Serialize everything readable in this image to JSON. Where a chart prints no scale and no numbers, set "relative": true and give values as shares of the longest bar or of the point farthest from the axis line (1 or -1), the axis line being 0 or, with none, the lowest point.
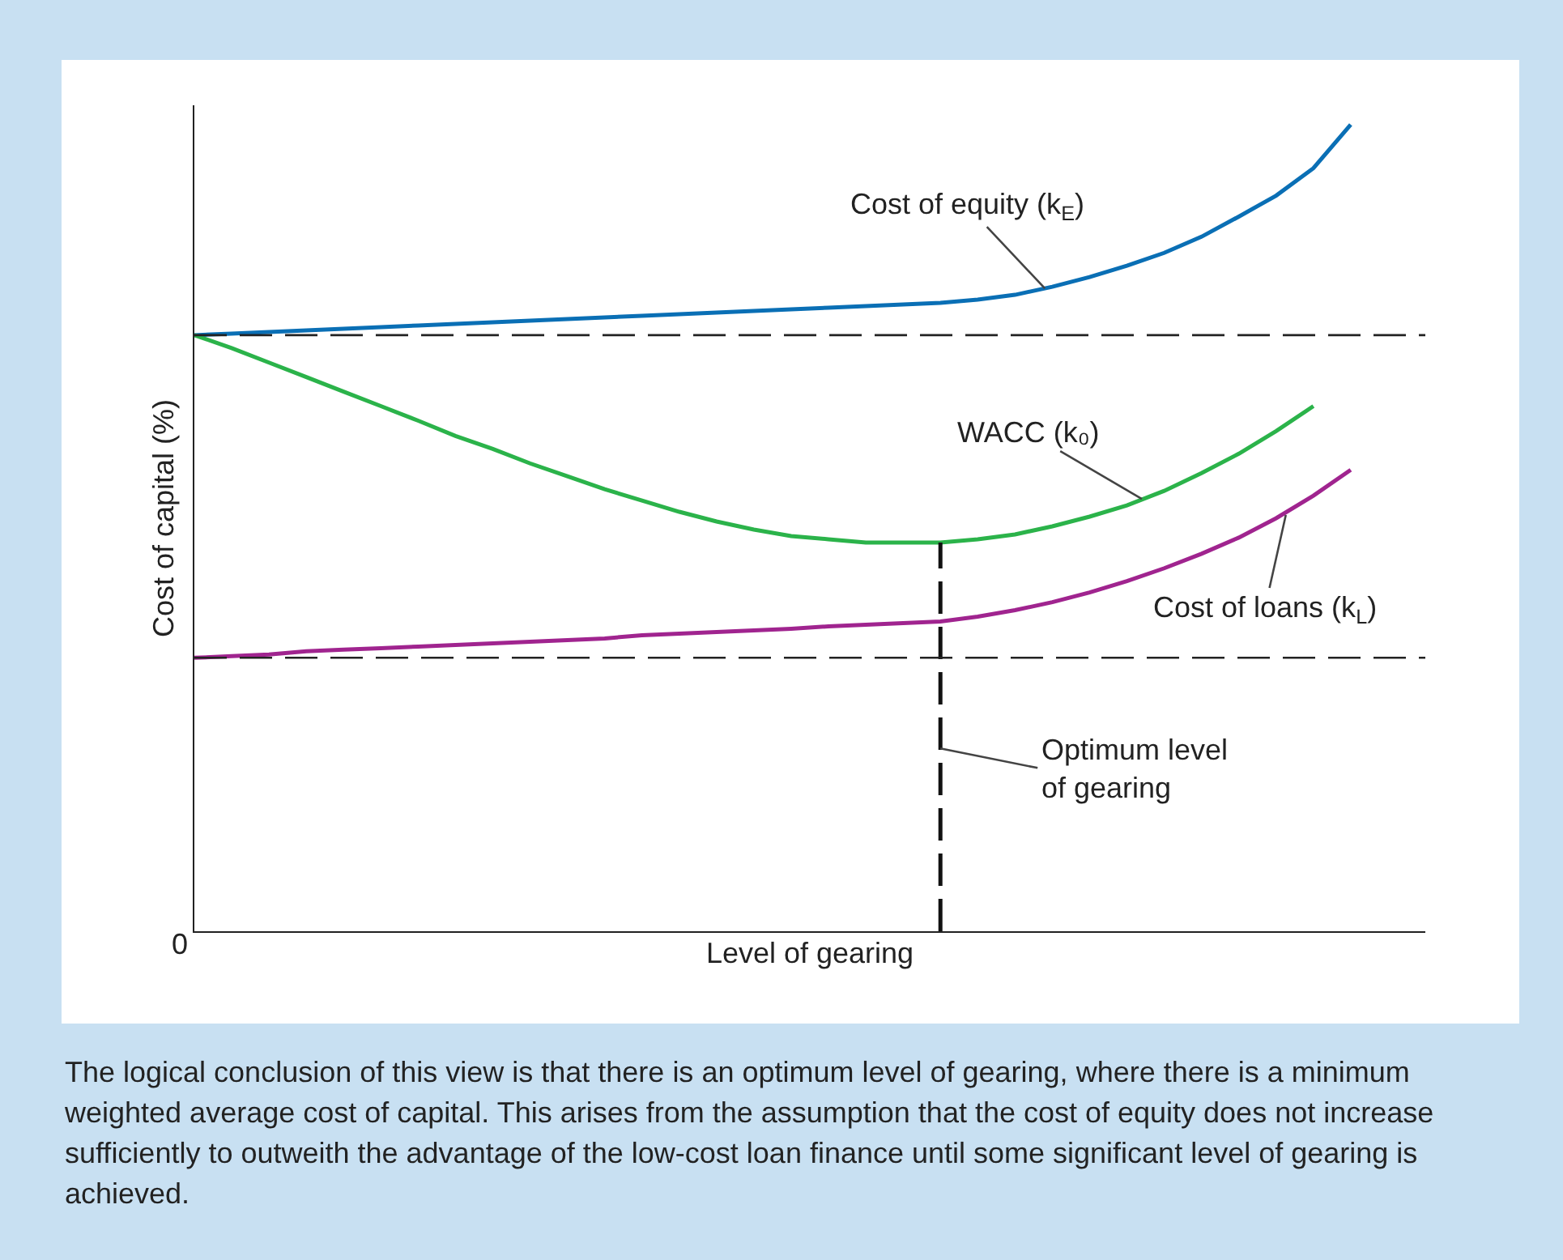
{
  "chart_data": {
    "type": "line",
    "relative": true,
    "marker": "none",
    "line_style": "solid",
    "xlabel": "Level of gearing",
    "ylabel": "Cost of capital (%)",
    "categories": [
      null,
      null,
      null,
      null,
      null,
      null,
      null,
      null,
      null,
      null,
      null,
      null,
      null,
      null,
      null,
      null,
      null,
      null,
      null,
      null,
      null,
      null,
      null,
      null,
      null,
      null,
      null,
      null,
      null,
      null,
      null,
      null
    ],
    "series": [
      {
        "color": "#0a6fb5",
        "values": [
          0.739,
          0.741,
          0.743,
          0.745,
          0.747,
          0.749,
          0.751,
          0.753,
          0.755,
          0.757,
          0.759,
          0.761,
          0.763,
          0.765,
          0.767,
          0.769,
          0.771,
          0.773,
          0.775,
          0.777,
          0.779,
          0.783,
          0.789,
          0.799,
          0.811,
          0.825,
          0.841,
          0.861,
          0.886,
          0.912,
          0.946,
          1.0
        ]
      },
      {
        "color": "#2bb34a",
        "values": [
          0.739,
          0.723,
          0.705,
          0.687,
          0.669,
          0.651,
          0.633,
          0.614,
          0.598,
          0.58,
          0.564,
          0.548,
          0.534,
          0.52,
          0.508,
          0.498,
          0.49,
          0.486,
          0.482,
          0.482,
          0.482,
          0.486,
          0.492,
          0.502,
          0.514,
          0.528,
          0.546,
          0.568,
          0.592,
          0.62,
          0.651,
          null
        ]
      },
      {
        "color": "#a0248f",
        "values": [
          0.339,
          0.341,
          0.343,
          0.347,
          0.349,
          0.351,
          0.353,
          0.355,
          0.357,
          0.359,
          0.361,
          0.363,
          0.367,
          0.369,
          0.371,
          0.373,
          0.375,
          0.378,
          0.38,
          0.382,
          0.384,
          0.39,
          0.398,
          0.408,
          0.42,
          0.434,
          0.45,
          0.468,
          0.488,
          0.512,
          0.54,
          0.572
        ]
      }
    ],
    "ref_lines": [
      {
        "axis": "y",
        "value": 0.739,
        "color": "#222222",
        "line_style": "dashed"
      },
      {
        "axis": "y",
        "value": 0.339,
        "color": "#222222",
        "line_style": "dashed"
      }
    ],
    "annotations": [
      "Cost of equity (k$_{E}$)",
      "WACC (k₀)",
      "Cost of loans (k$_{L}$)",
      "Optimum level\nof gearing",
      "0",
      "The logical conclusion of this view is that there is an optimum level of gearing, where there is a minimum weighted average cost of capital. This arises from the assumption that the cost of equity does not increase sufficiently to outweith the advantage of the low-cost loan finance until some significant level of gearing is achieved."
    ]
  }
}
